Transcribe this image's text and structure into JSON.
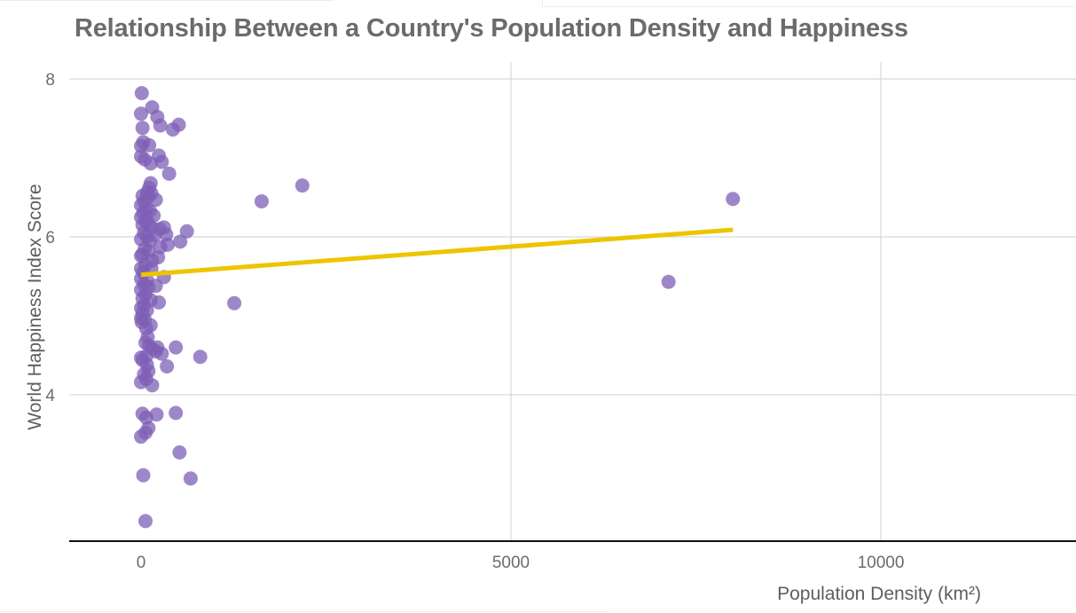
{
  "chart_data": {
    "type": "scatter",
    "title": "Relationship Between a Country's Population Density and Happiness",
    "xlabel": "Population Density (km²)",
    "ylabel": "World Happiness Index Score",
    "xlim": [
      -1000,
      12600
    ],
    "ylim": [
      2.2,
      8.1
    ],
    "x_ticks": [
      0,
      5000,
      10000
    ],
    "x_tick_labels": [
      "0",
      "5000",
      "10000"
    ],
    "y_ticks": [
      4,
      6,
      8
    ],
    "y_tick_labels": [
      "4",
      "6",
      "8"
    ],
    "grid": true,
    "legend": "none",
    "point_color": "#7e5fb5",
    "trend_color": "#eec400",
    "trendline": {
      "x": [
        0,
        8000
      ],
      "y": [
        5.52,
        6.09
      ]
    },
    "points": [
      {
        "x": 10,
        "y": 7.82
      },
      {
        "x": 150,
        "y": 7.64
      },
      {
        "x": 0,
        "y": 7.56
      },
      {
        "x": 220,
        "y": 7.52
      },
      {
        "x": 510,
        "y": 7.42
      },
      {
        "x": 260,
        "y": 7.41
      },
      {
        "x": 20,
        "y": 7.38
      },
      {
        "x": 430,
        "y": 7.36
      },
      {
        "x": 110,
        "y": 7.16
      },
      {
        "x": 30,
        "y": 7.2
      },
      {
        "x": 0,
        "y": 7.15
      },
      {
        "x": 0,
        "y": 7.02
      },
      {
        "x": 50,
        "y": 6.98
      },
      {
        "x": 240,
        "y": 7.03
      },
      {
        "x": 130,
        "y": 6.93
      },
      {
        "x": 280,
        "y": 6.95
      },
      {
        "x": 380,
        "y": 6.8
      },
      {
        "x": 130,
        "y": 6.68
      },
      {
        "x": 110,
        "y": 6.62
      },
      {
        "x": 80,
        "y": 6.56
      },
      {
        "x": 140,
        "y": 6.55
      },
      {
        "x": 20,
        "y": 6.52
      },
      {
        "x": 90,
        "y": 6.5
      },
      {
        "x": 200,
        "y": 6.47
      },
      {
        "x": 40,
        "y": 6.45
      },
      {
        "x": 0,
        "y": 6.4
      },
      {
        "x": 70,
        "y": 6.35
      },
      {
        "x": 120,
        "y": 6.33
      },
      {
        "x": 30,
        "y": 6.3
      },
      {
        "x": 170,
        "y": 6.27
      },
      {
        "x": 0,
        "y": 6.25
      },
      {
        "x": 60,
        "y": 6.2
      },
      {
        "x": 100,
        "y": 6.18
      },
      {
        "x": 20,
        "y": 6.15
      },
      {
        "x": 140,
        "y": 6.12
      },
      {
        "x": 250,
        "y": 6.1
      },
      {
        "x": 310,
        "y": 6.12
      },
      {
        "x": 620,
        "y": 6.07
      },
      {
        "x": 40,
        "y": 6.05
      },
      {
        "x": 80,
        "y": 6.0
      },
      {
        "x": 180,
        "y": 6.02
      },
      {
        "x": 340,
        "y": 6.03
      },
      {
        "x": 0,
        "y": 5.97
      },
      {
        "x": 120,
        "y": 5.95
      },
      {
        "x": 530,
        "y": 5.94
      },
      {
        "x": 360,
        "y": 5.9
      },
      {
        "x": 260,
        "y": 5.87
      },
      {
        "x": 50,
        "y": 5.85
      },
      {
        "x": 100,
        "y": 5.82
      },
      {
        "x": 20,
        "y": 5.78
      },
      {
        "x": 0,
        "y": 5.76
      },
      {
        "x": 230,
        "y": 5.74
      },
      {
        "x": 150,
        "y": 5.7
      },
      {
        "x": 60,
        "y": 5.65
      },
      {
        "x": 0,
        "y": 5.6
      },
      {
        "x": 140,
        "y": 5.6
      },
      {
        "x": 30,
        "y": 5.55
      },
      {
        "x": 310,
        "y": 5.49
      },
      {
        "x": 0,
        "y": 5.47
      },
      {
        "x": 80,
        "y": 5.45
      },
      {
        "x": 40,
        "y": 5.4
      },
      {
        "x": 200,
        "y": 5.38
      },
      {
        "x": 100,
        "y": 5.36
      },
      {
        "x": 0,
        "y": 5.33
      },
      {
        "x": 60,
        "y": 5.27
      },
      {
        "x": 20,
        "y": 5.22
      },
      {
        "x": 130,
        "y": 5.2
      },
      {
        "x": 240,
        "y": 5.17
      },
      {
        "x": 1260,
        "y": 5.16
      },
      {
        "x": 40,
        "y": 5.13
      },
      {
        "x": 0,
        "y": 5.1
      },
      {
        "x": 80,
        "y": 5.07
      },
      {
        "x": 20,
        "y": 5.03
      },
      {
        "x": 0,
        "y": 4.97
      },
      {
        "x": 50,
        "y": 4.95
      },
      {
        "x": 10,
        "y": 4.92
      },
      {
        "x": 130,
        "y": 4.88
      },
      {
        "x": 70,
        "y": 4.84
      },
      {
        "x": 90,
        "y": 4.73
      },
      {
        "x": 60,
        "y": 4.66
      },
      {
        "x": 110,
        "y": 4.62
      },
      {
        "x": 470,
        "y": 4.6
      },
      {
        "x": 220,
        "y": 4.6
      },
      {
        "x": 150,
        "y": 4.58
      },
      {
        "x": 200,
        "y": 4.55
      },
      {
        "x": 280,
        "y": 4.52
      },
      {
        "x": 70,
        "y": 4.49
      },
      {
        "x": 800,
        "y": 4.48
      },
      {
        "x": 0,
        "y": 4.47
      },
      {
        "x": 20,
        "y": 4.44
      },
      {
        "x": 80,
        "y": 4.38
      },
      {
        "x": 350,
        "y": 4.36
      },
      {
        "x": 100,
        "y": 4.3
      },
      {
        "x": 40,
        "y": 4.26
      },
      {
        "x": 70,
        "y": 4.2
      },
      {
        "x": 0,
        "y": 4.16
      },
      {
        "x": 150,
        "y": 4.12
      },
      {
        "x": 20,
        "y": 3.76
      },
      {
        "x": 210,
        "y": 3.75
      },
      {
        "x": 470,
        "y": 3.77
      },
      {
        "x": 70,
        "y": 3.71
      },
      {
        "x": 100,
        "y": 3.58
      },
      {
        "x": 60,
        "y": 3.52
      },
      {
        "x": 0,
        "y": 3.47
      },
      {
        "x": 520,
        "y": 3.27
      },
      {
        "x": 30,
        "y": 2.98
      },
      {
        "x": 670,
        "y": 2.94
      },
      {
        "x": 60,
        "y": 2.4
      },
      {
        "x": 1630,
        "y": 6.45
      },
      {
        "x": 2180,
        "y": 6.65
      },
      {
        "x": 8000,
        "y": 6.48
      },
      {
        "x": 7130,
        "y": 5.43
      }
    ]
  }
}
